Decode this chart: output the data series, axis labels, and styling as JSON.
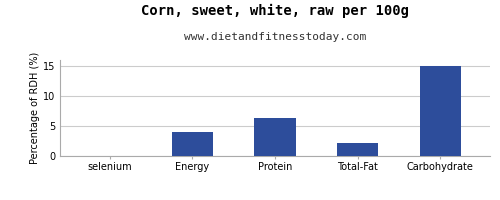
{
  "title": "Corn, sweet, white, raw per 100g",
  "subtitle": "www.dietandfitnesstoday.com",
  "categories": [
    "selenium",
    "Energy",
    "Protein",
    "Total-Fat",
    "Carbohydrate"
  ],
  "values": [
    0.0,
    4.0,
    6.3,
    2.2,
    15.0
  ],
  "bar_color": "#2d4d9b",
  "ylabel": "Percentage of RDH (%)",
  "ylim": [
    0,
    16
  ],
  "yticks": [
    0,
    5,
    10,
    15
  ],
  "fig_background": "#ffffff",
  "plot_background": "#ffffff",
  "grid_color": "#cccccc",
  "title_fontsize": 10,
  "subtitle_fontsize": 8,
  "ylabel_fontsize": 7,
  "tick_fontsize": 7,
  "bar_width": 0.5
}
